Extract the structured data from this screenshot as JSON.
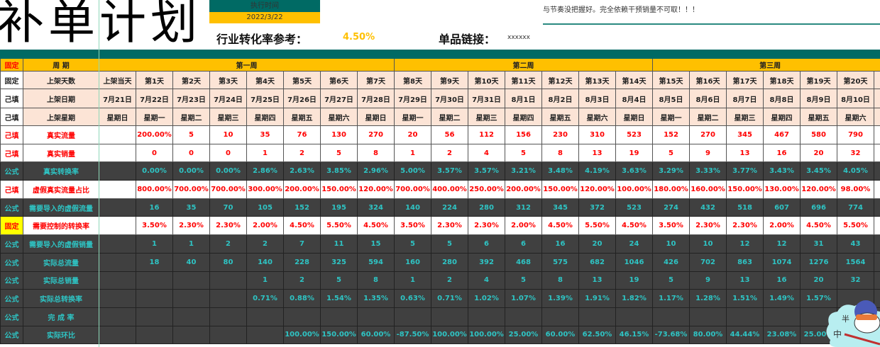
{
  "header": {
    "title": "补单计划",
    "exec_time_label": "执行时间",
    "exec_time_value": "2022/3/22",
    "industry_rate_label": "行业转化率参考：",
    "industry_rate_value": "4.50%",
    "product_link_label": "单品链接：",
    "product_link_value": "xxxxxx",
    "note_text": "与节奏没把握好。完全依赖干预销量不可取！！！"
  },
  "colors": {
    "teal": "#006a64",
    "amber": "#ffc000",
    "peach": "#fce4d6",
    "dark": "#404040",
    "formula_text": "#2ec4c4",
    "input_text": "#ff0000",
    "fixed_yellow": "#ffff00"
  },
  "table": {
    "period_row": {
      "status": "固定",
      "label": "周 期",
      "weeks": [
        "第一周",
        "第二周",
        "第三周"
      ]
    },
    "day_row": {
      "status": "固定",
      "label": "上架天数",
      "launch": "上架当天",
      "days": [
        "第1天",
        "第2天",
        "第3天",
        "第4天",
        "第5天",
        "第6天",
        "第7天",
        "第8天",
        "第9天",
        "第10天",
        "第11天",
        "第12天",
        "第13天",
        "第14天",
        "第15天",
        "第16天",
        "第17天",
        "第18天",
        "第19天",
        "第20天"
      ]
    },
    "date_row": {
      "status": "己填",
      "label": "上架日期",
      "launch": "7月21日",
      "days": [
        "7月22日",
        "7月23日",
        "7月24日",
        "7月25日",
        "7月26日",
        "7月27日",
        "7月28日",
        "7月29日",
        "7月30日",
        "7月31日",
        "8月1日",
        "8月2日",
        "8月3日",
        "8月4日",
        "8月5日",
        "8月6日",
        "8月7日",
        "8月8日",
        "8月9日",
        "8月10日"
      ]
    },
    "weekday_row": {
      "status": "己填",
      "label": "上架星期",
      "launch": "星期日",
      "days": [
        "星期一",
        "星期二",
        "星期三",
        "星期四",
        "星期五",
        "星期六",
        "星期日",
        "星期一",
        "星期二",
        "星期三",
        "星期四",
        "星期五",
        "星期六",
        "星期日",
        "星期一",
        "星期二",
        "星期三",
        "星期四",
        "星期五",
        "星期六"
      ]
    },
    "rows": [
      {
        "status": "己填",
        "label": "真实流量",
        "style": "white",
        "values": [
          "200.00%",
          "5",
          "10",
          "35",
          "76",
          "130",
          "270",
          "20",
          "56",
          "112",
          "156",
          "230",
          "310",
          "523",
          "152",
          "270",
          "345",
          "467",
          "580",
          "790"
        ]
      },
      {
        "status": "己填",
        "label": "真实销量",
        "style": "white",
        "values": [
          "0",
          "0",
          "0",
          "1",
          "2",
          "5",
          "8",
          "1",
          "2",
          "4",
          "5",
          "8",
          "13",
          "19",
          "5",
          "9",
          "13",
          "16",
          "20",
          "32"
        ]
      },
      {
        "status": "公式",
        "label": "真实转换率",
        "style": "dark",
        "values": [
          "0.00%",
          "0.00%",
          "0.00%",
          "2.86%",
          "2.63%",
          "3.85%",
          "2.96%",
          "5.00%",
          "3.57%",
          "3.57%",
          "3.21%",
          "3.48%",
          "4.19%",
          "3.63%",
          "3.29%",
          "3.33%",
          "3.77%",
          "3.43%",
          "3.45%",
          "4.05%"
        ]
      },
      {
        "status": "己填",
        "label": "虚假真实流量占比",
        "style": "white",
        "values": [
          "800.00%",
          "700.00%",
          "700.00%",
          "300.00%",
          "200.00%",
          "150.00%",
          "120.00%",
          "700.00%",
          "400.00%",
          "250.00%",
          "200.00%",
          "150.00%",
          "120.00%",
          "100.00%",
          "180.00%",
          "160.00%",
          "150.00%",
          "130.00%",
          "120.00%",
          "98.00%"
        ]
      },
      {
        "status": "公式",
        "label": "需要导入的虚假流量",
        "style": "dark",
        "values": [
          "16",
          "35",
          "70",
          "105",
          "152",
          "195",
          "324",
          "140",
          "224",
          "280",
          "312",
          "345",
          "372",
          "523",
          "274",
          "432",
          "518",
          "607",
          "696",
          "774"
        ]
      },
      {
        "status": "固定",
        "label": "需要控制的转换率",
        "style": "white",
        "status_style": "fixed-yellow",
        "values": [
          "3.50%",
          "2.30%",
          "2.30%",
          "2.00%",
          "4.50%",
          "5.50%",
          "4.50%",
          "3.50%",
          "2.30%",
          "2.30%",
          "2.00%",
          "4.50%",
          "5.50%",
          "4.50%",
          "3.50%",
          "2.30%",
          "2.30%",
          "2.00%",
          "4.50%",
          "5.50%"
        ]
      },
      {
        "status": "公式",
        "label": "需要导入的虚假销量",
        "style": "dark",
        "values": [
          "1",
          "1",
          "2",
          "2",
          "7",
          "11",
          "15",
          "5",
          "5",
          "6",
          "6",
          "16",
          "20",
          "24",
          "10",
          "10",
          "12",
          "12",
          "31",
          "43"
        ]
      },
      {
        "status": "公式",
        "label": "实际总流量",
        "style": "dark",
        "values": [
          "18",
          "40",
          "80",
          "140",
          "228",
          "325",
          "594",
          "160",
          "280",
          "392",
          "468",
          "575",
          "682",
          "1046",
          "426",
          "702",
          "863",
          "1074",
          "1276",
          "1564"
        ]
      },
      {
        "status": "公式",
        "label": "实际总销量",
        "style": "dark",
        "values": [
          "",
          "",
          "",
          "1",
          "2",
          "5",
          "8",
          "1",
          "2",
          "4",
          "5",
          "8",
          "13",
          "19",
          "5",
          "9",
          "13",
          "16",
          "20",
          "32"
        ]
      },
      {
        "status": "公式",
        "label": "实际总转换率",
        "style": "dark",
        "values": [
          "",
          "",
          "",
          "0.71%",
          "0.88%",
          "1.54%",
          "1.35%",
          "0.63%",
          "0.71%",
          "1.02%",
          "1.07%",
          "1.39%",
          "1.91%",
          "1.82%",
          "1.17%",
          "1.28%",
          "1.51%",
          "1.49%",
          "1.57%",
          ""
        ]
      },
      {
        "status": "公式",
        "label": "完 成 率",
        "style": "dark",
        "values": [
          "",
          "",
          "",
          "",
          "",
          "",
          "",
          "",
          "",
          "",
          "",
          "",
          "",
          "",
          "",
          "",
          "",
          "",
          "",
          ""
        ]
      },
      {
        "status": "公式",
        "label": "实际环比",
        "style": "dark",
        "values": [
          "",
          "",
          "",
          "",
          "100.00%",
          "150.00%",
          "60.00%",
          "-87.50%",
          "100.00%",
          "100.00%",
          "25.00%",
          "60.00%",
          "62.50%",
          "46.15%",
          "-73.68%",
          "80.00%",
          "44.44%",
          "23.08%",
          "25.00%",
          "60.00%"
        ]
      }
    ]
  }
}
